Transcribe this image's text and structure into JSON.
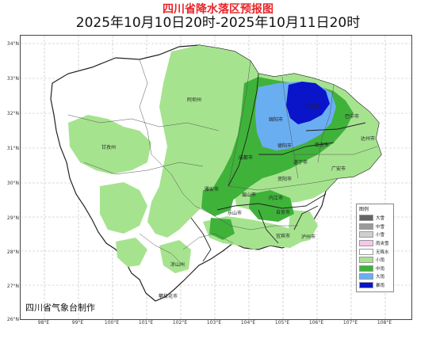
{
  "title": "四川省降水落区预报图",
  "subtitle": "2025年10月10日20时-2025年10月11日20时",
  "credit": "四川省气象台制作",
  "lat_labels": [
    "34°N",
    "33°N",
    "32°N",
    "31°N",
    "30°N",
    "29°N",
    "28°N",
    "27°N",
    "26°N"
  ],
  "lon_labels": [
    "98°E",
    "99°E",
    "100°E",
    "101°E",
    "102°E",
    "103°E",
    "104°E",
    "105°E",
    "106°E",
    "107°E",
    "108°E"
  ],
  "legend": {
    "title": "图例",
    "items": [
      {
        "label": "大雪",
        "color": "#666666"
      },
      {
        "label": "中雪",
        "color": "#9a9a9a"
      },
      {
        "label": "小雪",
        "color": "#cfcfcf"
      },
      {
        "label": "雨夹雪",
        "color": "#f7c6ec"
      },
      {
        "label": "无降水",
        "color": "#ffffff"
      },
      {
        "label": "小雨",
        "color": "#a6e38f"
      },
      {
        "label": "中雨",
        "color": "#3fb23a"
      },
      {
        "label": "大雨",
        "color": "#6aaef2"
      },
      {
        "label": "暴雨",
        "color": "#0a14c8"
      }
    ]
  },
  "cities": [
    {
      "name": "阿坝州"
    },
    {
      "name": "甘孜州"
    },
    {
      "name": "绵阳市"
    },
    {
      "name": "巴中市"
    },
    {
      "name": "广元市"
    },
    {
      "name": "达州市"
    },
    {
      "name": "南充市"
    },
    {
      "name": "成都市"
    },
    {
      "name": "德阳市"
    },
    {
      "name": "遂宁市"
    },
    {
      "name": "资阳市"
    },
    {
      "name": "内江市"
    },
    {
      "name": "雅安市"
    },
    {
      "name": "乐山市"
    },
    {
      "name": "眉山市"
    },
    {
      "name": "宜宾市"
    },
    {
      "name": "泸州市"
    },
    {
      "name": "自贡市"
    },
    {
      "name": "凉山州"
    },
    {
      "name": "攀枝花市"
    },
    {
      "name": "广安市"
    }
  ]
}
